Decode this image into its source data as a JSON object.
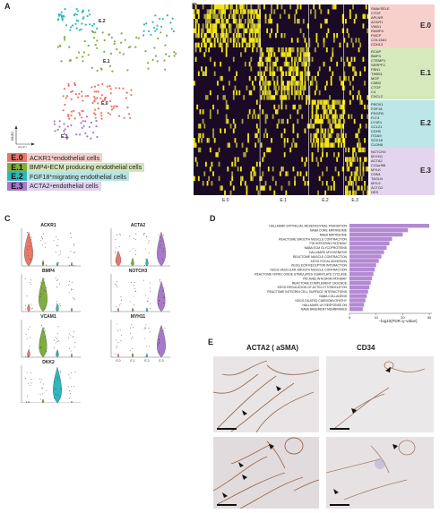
{
  "panels": {
    "a": "A",
    "b": "B",
    "c": "C",
    "d": "D",
    "e": "E"
  },
  "panel_a": {
    "clusters": [
      {
        "code": "E.0",
        "label_text": "ACKR1",
        "label_sup": "+",
        "label_rest": " endothelial cells",
        "color": "#e8776a",
        "bg": "#f6cfc9",
        "code_bg": "#e8776a"
      },
      {
        "code": "E.1",
        "label_text": "BMP4",
        "label_sup": "+",
        "label_rest": " ECM producing endothelial cells",
        "color": "#7fae3e",
        "bg": "#d2e6b8",
        "code_bg": "#7fae3e"
      },
      {
        "code": "E.2",
        "label_text": "FGF18",
        "label_sup": "+",
        "label_rest": "migrating endothelial cells",
        "color": "#2fb7bd",
        "bg": "#b6e4e6",
        "code_bg": "#2fb7bd"
      },
      {
        "code": "E.3",
        "label_text": "ACTA2",
        "label_sup": "+",
        "label_rest": " endothelial cells",
        "color": "#a67ac9",
        "bg": "#e1d2ee",
        "code_bg": "#a67ac9"
      }
    ],
    "axis_x": "tSNE1",
    "axis_y": "tSNE2"
  },
  "panel_b": {
    "gene_groups": [
      {
        "code": "E.0",
        "bg": "#f7d0cb",
        "genes": [
          "SNAI/SELE",
          "CTGF",
          "APLNR",
          "ACKR1",
          "VWA1",
          "RAMP4",
          "FMCP",
          "COL15A1",
          "CDH13"
        ]
      },
      {
        "code": "E.1",
        "bg": "#d6e9bd",
        "genes": [
          "RCAP",
          "BMP4",
          "CTEMP1",
          "SERPF3",
          "FBN1",
          "THBS1",
          "MGP",
          "CMB2",
          "CTGF",
          "C4",
          "CXCL2"
        ]
      },
      {
        "code": "E.2",
        "bg": "#bce6e8",
        "genes": [
          "PROX1",
          "FGF18",
          "PDGFB",
          "FLT4",
          "LYVE1",
          "CCL21",
          "CDH5",
          "ITGA9",
          "SOX18",
          "CLDN5"
        ]
      },
      {
        "code": "E.3",
        "bg": "#e4d5ef",
        "genes": [
          "NOTCH3",
          "MYH11",
          "ACTA2",
          "C11orf96",
          "MYLK",
          "CNN1",
          "TAGLN",
          "MYL9",
          "ACTG2",
          "DES"
        ]
      }
    ],
    "x_labels": [
      "E.0",
      "E.1",
      "E.2",
      "E.3"
    ]
  },
  "panel_c": {
    "genes_left": [
      "ACKR1",
      "BMP4",
      "VCAM1",
      "DKK2"
    ],
    "genes_right": [
      "ACTA2",
      "NOTCH3",
      "MYH11"
    ],
    "x_labels": [
      "E.0",
      "E.1",
      "E.2",
      "E.3"
    ]
  },
  "panel_d": {
    "xlabel": "−log10(FDR q−value)",
    "chart_data": {
      "type": "bar",
      "categories": [
        "HALLMARK EPITHELIAL MESENCHYMAL TRANSITION",
        "NABA CORE MATRISOME",
        "NABA MATRISOME",
        "REACTOME SMOOTH MUSCLE CONTRACTION",
        "PID INTEGRIN1 PATHWAY",
        "NABA ECM GLYCOPROTEINS",
        "HALLMARK MYOGENESIS",
        "REACTOME MUSCLE CONTRACTION",
        "KEGG FOCAL ADHESION",
        "KEGG ECM RECEPTOR INTERACTION",
        "KEGG VASCULAR SMOOTH MUSCLE CONTRACTION",
        "REACTOME NITRIC OXIDE STIMULATES GUANYLATE CYCLASE",
        "PID AVB3 INTEGRIN PATHWAY",
        "REACTOME COMPLEMENT CASCADE",
        "KEGG REGULATION OF ACTIN CYTOSKELETON",
        "REACTOME INTEGRIN CELL SURFACE INTERACTIONS",
        "NABA COLLAGENS",
        "KEGG DILATED CARDIOMYOPATHY",
        "HALLMARK UV RESPONSE DN",
        "NABA BASEMENT MEMBRANES"
      ],
      "values": [
        30,
        22,
        20,
        16,
        15,
        14,
        13,
        12,
        11,
        10,
        9.5,
        9,
        8.5,
        8,
        7.5,
        7,
        6.5,
        6,
        5.5,
        5
      ],
      "ticks": [
        0,
        10,
        20,
        30
      ],
      "xlim": [
        0,
        31
      ],
      "bar_color": "#b48ad3"
    }
  },
  "panel_e": {
    "title_left": "ACTA2 ( aSMA)",
    "title_right": "CD34"
  }
}
